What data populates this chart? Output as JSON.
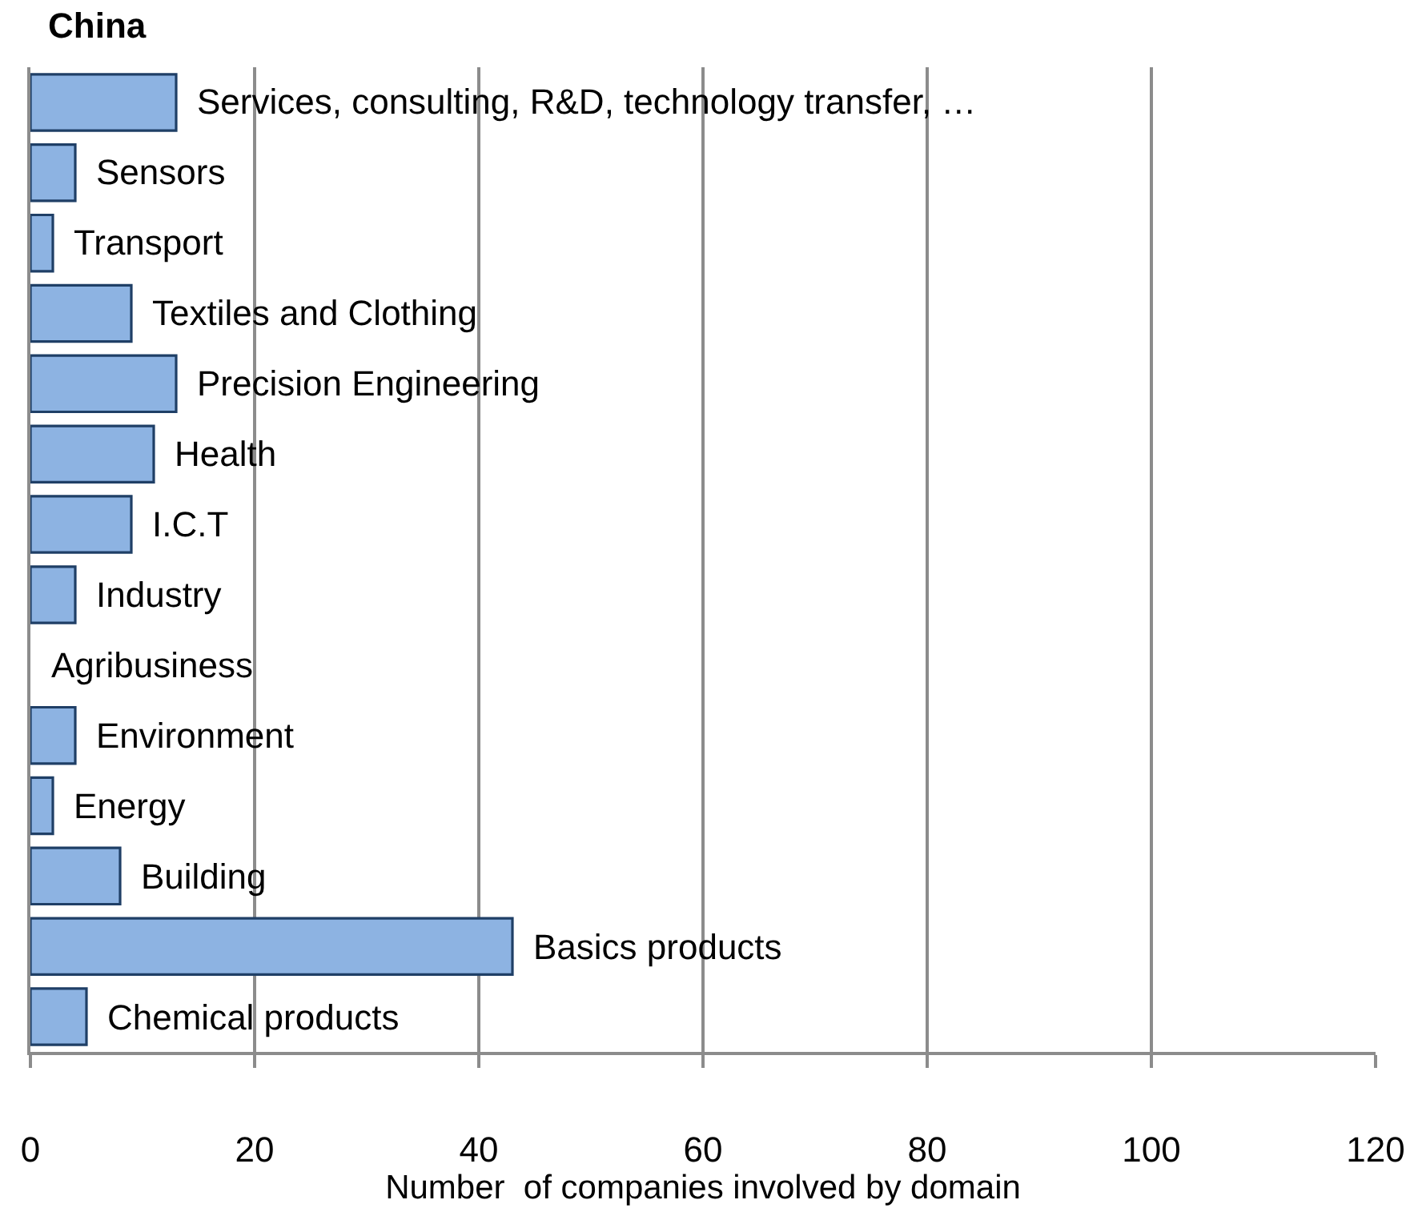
{
  "chart_data": {
    "type": "bar",
    "orientation": "horizontal",
    "title": "China",
    "xlabel": "Number  of companies involved by domain",
    "categories": [
      "Services, consulting, R&D, technology transfer, …",
      "Sensors",
      "Transport",
      "Textiles and Clothing",
      "Precision Engineering",
      "Health",
      "I.C.T",
      "Industry",
      "Agribusiness",
      "Environment",
      "Energy",
      "Building",
      "Basics products",
      "Chemical products"
    ],
    "values": [
      13,
      4,
      2,
      9,
      13,
      11,
      9,
      4,
      0,
      4,
      2,
      8,
      43,
      5
    ],
    "color": "#8db3e2",
    "xlim": [
      0,
      120
    ],
    "xticks": [
      0,
      20,
      40,
      60,
      80,
      100,
      120
    ],
    "grid": "x",
    "tick_labels": "x"
  }
}
